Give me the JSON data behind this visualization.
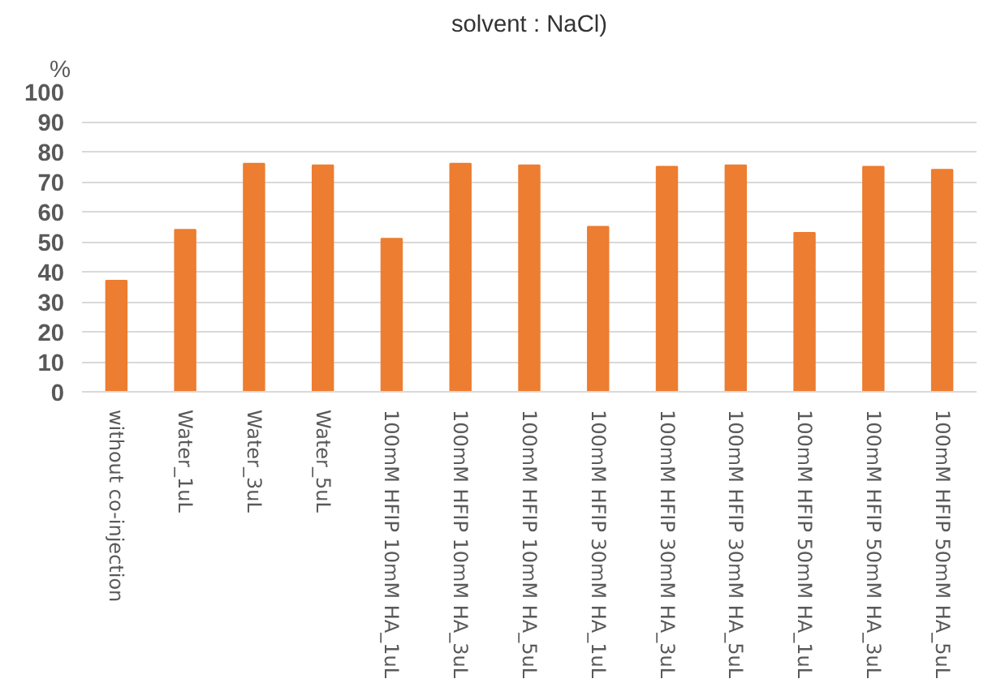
{
  "chart_data": {
    "type": "bar",
    "title": "solvent : NaCl)",
    "ylabel": "%",
    "categories": [
      "without co-injection",
      "Water_1uL",
      "Water_3uL",
      "Water_5uL",
      "100mM HFIP 10mM HA_1uL",
      "100mM HFIP 10mM HA_3uL",
      "100mM HFIP 10mM HA_5uL",
      "100mM HFIP 30mM HA_1uL",
      "100mM HFIP 30mM HA_3uL",
      "100mM HFIP 30mM HA_5uL",
      "100mM HFIP 50mM HA_1uL",
      "100mM HFIP 50mM HA_3uL",
      "100mM HFIP 50mM HA_5uL"
    ],
    "values": [
      37,
      54,
      76,
      75.5,
      51,
      76,
      75.5,
      55,
      75,
      75.5,
      53,
      75,
      74
    ],
    "color": "#ed7d31",
    "ylim": [
      0,
      100
    ],
    "yticks": [
      0,
      10,
      20,
      30,
      40,
      50,
      60,
      70,
      80,
      90,
      100
    ],
    "grid": "y"
  }
}
